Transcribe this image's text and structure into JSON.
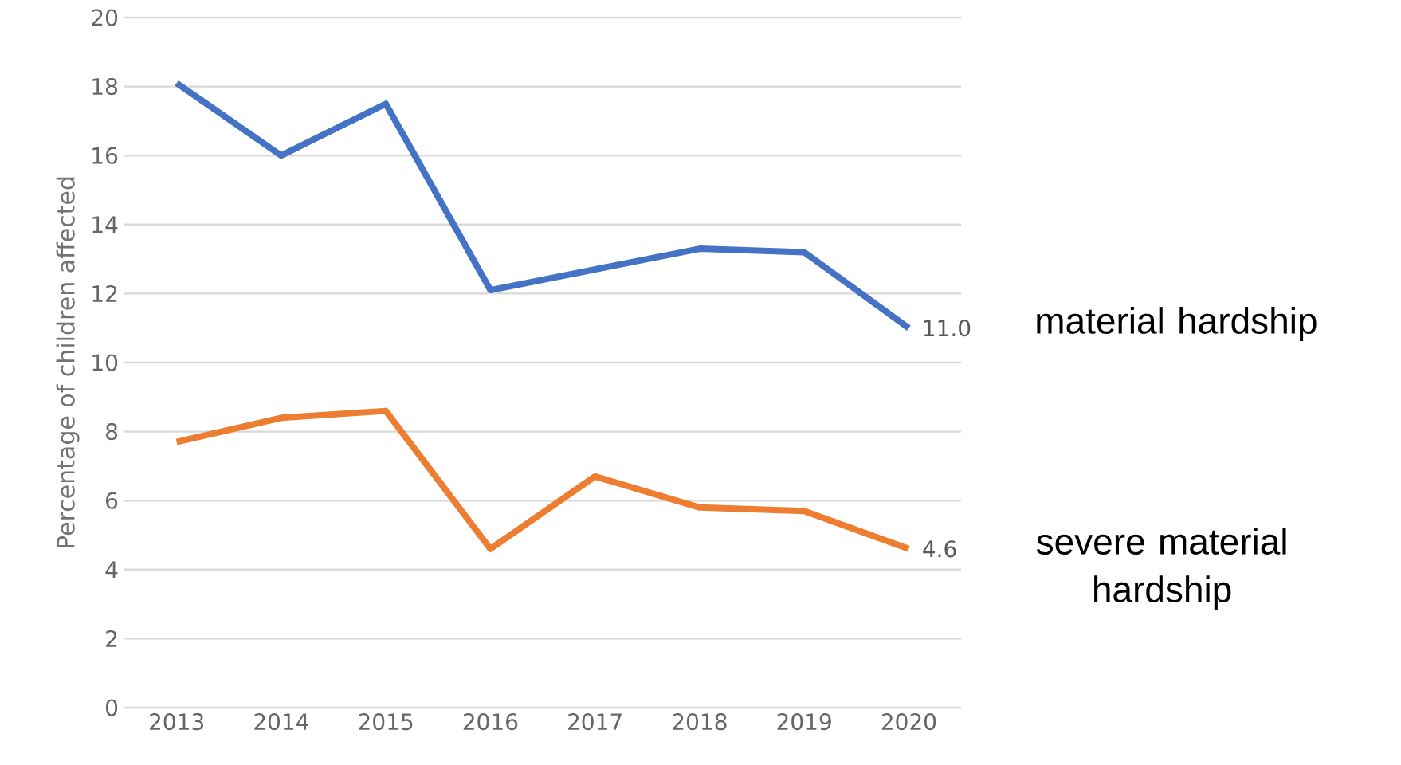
{
  "chart_data": {
    "type": "line",
    "ylabel": "Percentage of children affected",
    "categories": [
      "2013",
      "2014",
      "2015",
      "2016",
      "2017",
      "2018",
      "2019",
      "2020"
    ],
    "series": [
      {
        "name": "material hardship",
        "color": "#4472c4",
        "values": [
          18.1,
          16.0,
          17.5,
          12.1,
          12.7,
          13.3,
          13.2,
          11.0
        ],
        "value_labels": [
          null,
          null,
          null,
          null,
          null,
          null,
          null,
          "11.0"
        ]
      },
      {
        "name": "severe material hardship",
        "color": "#ed7d31",
        "values": [
          7.7,
          8.4,
          8.6,
          4.6,
          6.7,
          5.8,
          5.7,
          4.6
        ],
        "value_labels": [
          null,
          null,
          null,
          null,
          null,
          null,
          null,
          "4.6"
        ]
      }
    ],
    "ylim": [
      0,
      20
    ],
    "yticks": [
      0,
      2,
      4,
      6,
      8,
      10,
      12,
      14,
      16,
      18,
      20
    ],
    "grid": "y"
  }
}
